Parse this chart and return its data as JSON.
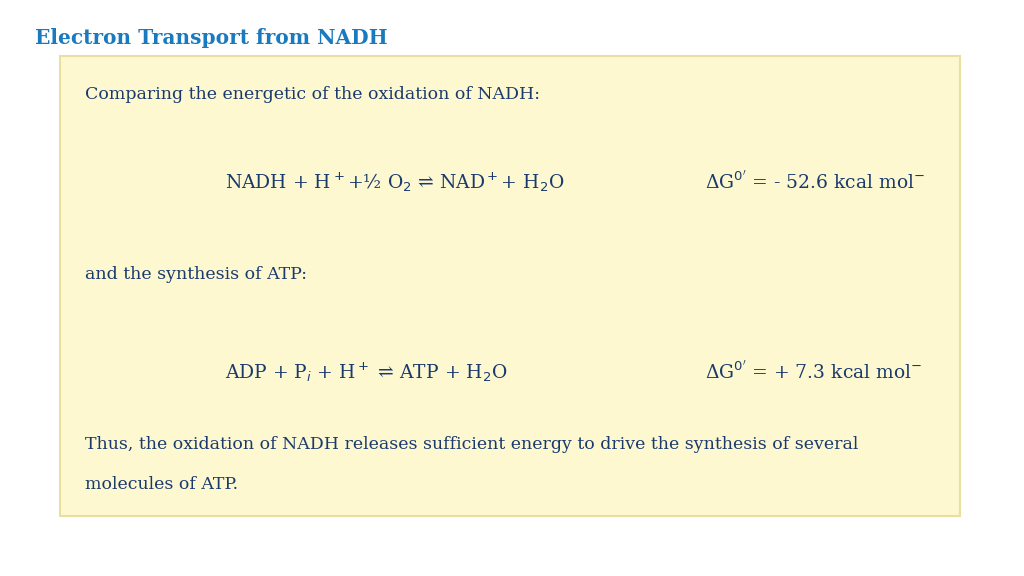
{
  "title": "Electron Transport from NADH",
  "title_color": "#1a7abf",
  "title_fontsize": 14.5,
  "bg_color": "#ffffff",
  "box_facecolor": "#fdf8d0",
  "box_edgecolor": "#e8e0a0",
  "text_color": "#1a3a6e",
  "text_fontsize": 12.5,
  "eq_fontsize": 13.5,
  "line1_text": "Comparing the energetic of the oxidation of NADH:",
  "eq1_left": "NADH + H$^+$+½ O$_2$ ⇌ NAD$^+$+ H$_2$O",
  "eq1_right": "ΔG$^{0'}$ = - 52.6 kcal mol$^{-}$",
  "line2_text": "and the synthesis of ATP:",
  "eq2_left": "ADP + P$_i$ + H$^+$ ⇌ ATP + H$_2$O",
  "eq2_right": "ΔG$^{0'}$ = + 7.3 kcal mol$^{-}$",
  "conclusion1": "Thus, the oxidation of NADH releases sufficient energy to drive the synthesis of several",
  "conclusion2": "molecules of ATP.",
  "fig_width": 10.24,
  "fig_height": 5.76,
  "dpi": 100
}
